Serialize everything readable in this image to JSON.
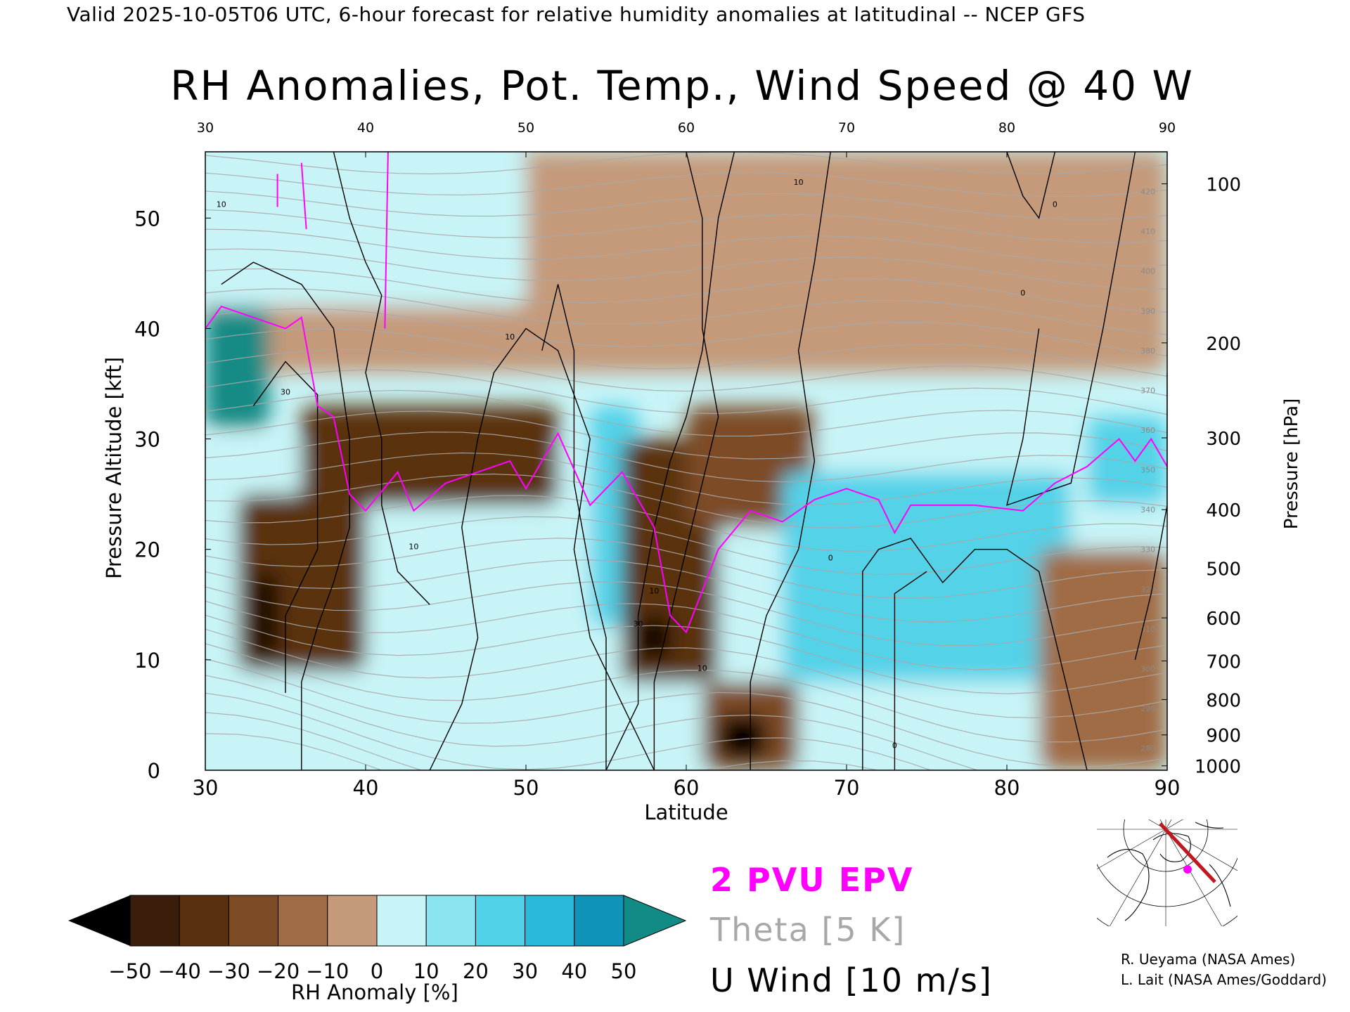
{
  "header": {
    "text": "Valid 2025-10-05T06 UTC, 6-hour forecast for relative humidity anomalies at latitudinal -- NCEP GFS"
  },
  "title": "RH Anomalies, Pot. Temp., Wind Speed @ 40 W",
  "chart_data": {
    "type": "heatmap",
    "title": "RH Anomalies, Pot. Temp., Wind Speed @ 40 W",
    "xlabel": "Latitude",
    "ylabel": "Pressure Altitude [kft]",
    "y2label": "Pressure [hPa]",
    "xlim": [
      30,
      90
    ],
    "ylim": [
      0,
      56
    ],
    "x_ticks": [
      "30",
      "40",
      "50",
      "60",
      "70",
      "80",
      "90"
    ],
    "x_top_ticks": [
      "30",
      "40",
      "50",
      "60",
      "70",
      "80",
      "90"
    ],
    "y_ticks": [
      "0",
      "10",
      "20",
      "30",
      "40",
      "50"
    ],
    "pressure_ticks": [
      {
        "label": "100",
        "kft": 53.1
      },
      {
        "label": "200",
        "kft": 38.7
      },
      {
        "label": "300",
        "kft": 30.1
      },
      {
        "label": "400",
        "kft": 23.6
      },
      {
        "label": "500",
        "kft": 18.3
      },
      {
        "label": "600",
        "kft": 13.8
      },
      {
        "label": "700",
        "kft": 9.9
      },
      {
        "label": "800",
        "kft": 6.4
      },
      {
        "label": "900",
        "kft": 3.2
      },
      {
        "label": "1000",
        "kft": 0.4
      }
    ],
    "colorbar": {
      "label": "RH Anomaly [%]",
      "ticks": [
        "−50",
        "−40",
        "−30",
        "−20",
        "−10",
        "0",
        "10",
        "20",
        "30",
        "40",
        "50"
      ],
      "colors": [
        "#3a1d0a",
        "#5a300f",
        "#7d4c26",
        "#a06c45",
        "#c49a7a",
        "#ead7cb",
        "#c8f4f7",
        "#8ae5f0",
        "#52d2e8",
        "#2ab8db",
        "#0f93b8"
      ],
      "under_color": "#000000",
      "over_color": "#128a85"
    },
    "rh_regions": [
      {
        "lat": [
          30,
          90
        ],
        "kft": [
          36,
          56
        ],
        "anomaly": -8
      },
      {
        "lat": [
          30,
          50
        ],
        "kft": [
          42,
          56
        ],
        "anomaly": 10
      },
      {
        "lat": [
          30,
          34
        ],
        "kft": [
          31,
          42
        ],
        "anomaly": 50
      },
      {
        "lat": [
          30,
          90
        ],
        "kft": [
          0,
          30
        ],
        "anomaly": 12
      },
      {
        "lat": [
          36,
          52
        ],
        "kft": [
          24,
          33
        ],
        "anomaly": -40
      },
      {
        "lat": [
          32,
          40
        ],
        "kft": [
          9,
          25
        ],
        "anomaly": -40
      },
      {
        "lat": [
          33,
          34.5
        ],
        "kft": [
          10,
          18
        ],
        "anomaly": -50
      },
      {
        "lat": [
          54,
          57
        ],
        "kft": [
          13,
          33
        ],
        "anomaly": 30
      },
      {
        "lat": [
          56,
          62
        ],
        "kft": [
          8,
          30
        ],
        "anomaly": -45
      },
      {
        "lat": [
          60,
          68
        ],
        "kft": [
          22,
          33
        ],
        "anomaly": -30
      },
      {
        "lat": [
          57,
          59
        ],
        "kft": [
          10,
          14
        ],
        "anomaly": -50
      },
      {
        "lat": [
          61,
          67
        ],
        "kft": [
          0,
          8
        ],
        "anomaly": -35
      },
      {
        "lat": [
          62,
          65
        ],
        "kft": [
          1,
          5
        ],
        "anomaly": -50
      },
      {
        "lat": [
          66,
          84
        ],
        "kft": [
          8,
          27
        ],
        "anomaly": 30
      },
      {
        "lat": [
          82,
          90
        ],
        "kft": [
          0,
          20
        ],
        "anomaly": -20
      },
      {
        "lat": [
          85,
          90
        ],
        "kft": [
          24,
          32
        ],
        "anomaly": 30
      }
    ],
    "theta_levels_K": [
      280,
      290,
      300,
      310,
      320,
      330,
      340,
      350,
      360,
      370,
      380,
      390,
      400,
      410,
      420
    ],
    "theta_interval_K": 5,
    "u_wind_levels_ms": [
      0,
      10,
      30
    ],
    "epv_2pvu_kft": [
      {
        "lat": 30,
        "kft": 40.0
      },
      {
        "lat": 31,
        "kft": 42.0
      },
      {
        "lat": 33,
        "kft": 41.0
      },
      {
        "lat": 35,
        "kft": 40.0
      },
      {
        "lat": 36,
        "kft": 41.0
      },
      {
        "lat": 37,
        "kft": 33.0
      },
      {
        "lat": 38,
        "kft": 32.0
      },
      {
        "lat": 39,
        "kft": 25.0
      },
      {
        "lat": 40,
        "kft": 23.5
      },
      {
        "lat": 42,
        "kft": 27.0
      },
      {
        "lat": 43,
        "kft": 23.5
      },
      {
        "lat": 45,
        "kft": 26.0
      },
      {
        "lat": 47,
        "kft": 27.0
      },
      {
        "lat": 49,
        "kft": 28.0
      },
      {
        "lat": 50,
        "kft": 25.5
      },
      {
        "lat": 51,
        "kft": 28.0
      },
      {
        "lat": 52,
        "kft": 30.5
      },
      {
        "lat": 54,
        "kft": 24.0
      },
      {
        "lat": 56,
        "kft": 27.0
      },
      {
        "lat": 58,
        "kft": 22.0
      },
      {
        "lat": 59,
        "kft": 14.0
      },
      {
        "lat": 60,
        "kft": 12.5
      },
      {
        "lat": 62,
        "kft": 20.0
      },
      {
        "lat": 64,
        "kft": 23.5
      },
      {
        "lat": 66,
        "kft": 22.5
      },
      {
        "lat": 68,
        "kft": 24.5
      },
      {
        "lat": 70,
        "kft": 25.5
      },
      {
        "lat": 72,
        "kft": 24.5
      },
      {
        "lat": 73,
        "kft": 21.5
      },
      {
        "lat": 74,
        "kft": 24.0
      },
      {
        "lat": 78,
        "kft": 24.0
      },
      {
        "lat": 81,
        "kft": 23.5
      },
      {
        "lat": 83,
        "kft": 26.0
      },
      {
        "lat": 85,
        "kft": 27.5
      },
      {
        "lat": 87,
        "kft": 30.0
      },
      {
        "lat": 88,
        "kft": 28.0
      },
      {
        "lat": 89,
        "kft": 30.0
      },
      {
        "lat": 90,
        "kft": 27.5
      }
    ],
    "legend": [
      "2 PVU EPV",
      "Theta [5 K]",
      "U Wind [10 m/s]"
    ],
    "legend_colors": {
      "epv": "#ff00ff",
      "theta": "#a8a8a8",
      "uwind": "#000000"
    }
  },
  "inset_map": {
    "section_color": "#c0181e",
    "marker_color": "#ff00ff"
  },
  "credits": [
    "R. Ueyama (NASA Ames)",
    "L. Lait (NASA Ames/Goddard)"
  ]
}
